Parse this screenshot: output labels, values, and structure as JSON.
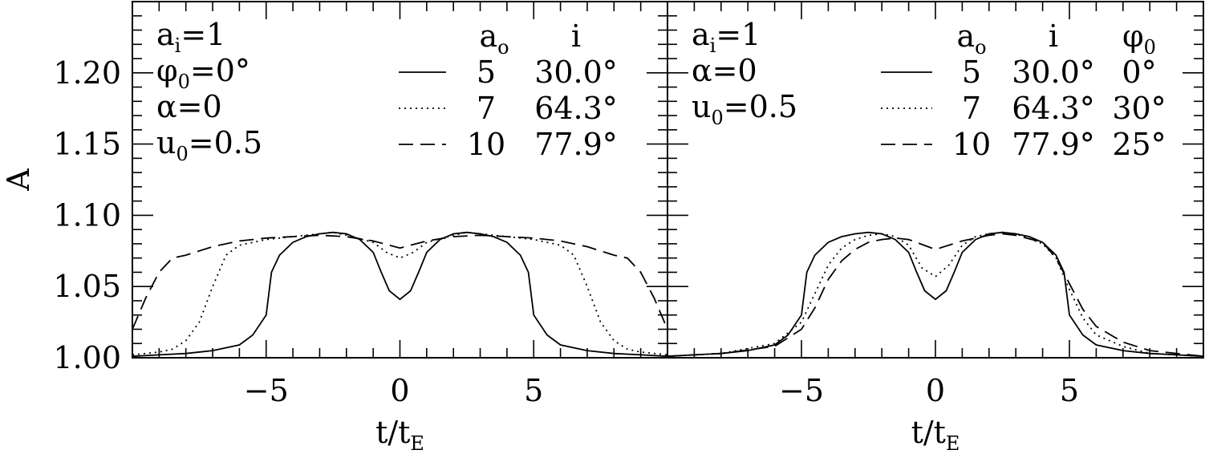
{
  "chart_data": [
    {
      "type": "line",
      "panel": "left",
      "xlabel": "t/t",
      "xlabel_sub": "E",
      "ylabel": "A",
      "xlim": [
        -10,
        10
      ],
      "ylim": [
        1.0,
        1.25
      ],
      "x_ticks": [
        -5,
        0,
        5
      ],
      "x_tick_labels": [
        "−5",
        "0",
        "5"
      ],
      "y_ticks": [
        1.0,
        1.05,
        1.1,
        1.15,
        1.2
      ],
      "y_tick_labels": [
        "1.00",
        "1.05",
        "1.10",
        "1.15",
        "1.20"
      ],
      "params": [
        {
          "sym": "a",
          "sub": "i",
          "value": "=1"
        },
        {
          "sym": "φ",
          "sub": "0",
          "value": "=0°"
        },
        {
          "sym": "α",
          "sub": "",
          "value": "=0"
        },
        {
          "sym": "u",
          "sub": "0",
          "value": "=0.5"
        }
      ],
      "legend_headers": [
        {
          "sym": "a",
          "sub": "o"
        },
        {
          "sym": "i",
          "sub": ""
        }
      ],
      "legend_rows": [
        {
          "style": "solid",
          "cols": [
            "5",
            "30.0°"
          ]
        },
        {
          "style": "dotted",
          "cols": [
            "7",
            "64.3°"
          ]
        },
        {
          "style": "dashed",
          "cols": [
            "10",
            "77.9°"
          ]
        }
      ],
      "series": [
        {
          "style": "solid",
          "x": [
            -10,
            -9,
            -8,
            -7,
            -6,
            -5.5,
            -5,
            -4.8,
            -4.5,
            -4,
            -3.5,
            -3,
            -2.5,
            -2,
            -1.5,
            -1,
            -0.7,
            -0.4,
            0,
            0.4,
            0.7,
            1,
            1.5,
            2,
            2.5,
            3,
            3.5,
            4,
            4.5,
            4.8,
            5,
            5.5,
            6,
            7,
            8,
            9,
            10
          ],
          "y": [
            1.001,
            1.002,
            1.003,
            1.005,
            1.009,
            1.016,
            1.03,
            1.06,
            1.072,
            1.081,
            1.085,
            1.087,
            1.088,
            1.087,
            1.083,
            1.074,
            1.06,
            1.047,
            1.041,
            1.047,
            1.06,
            1.074,
            1.083,
            1.087,
            1.088,
            1.087,
            1.085,
            1.081,
            1.072,
            1.06,
            1.03,
            1.016,
            1.009,
            1.005,
            1.003,
            1.002,
            1.001
          ]
        },
        {
          "style": "dotted",
          "x": [
            -10,
            -9,
            -8.5,
            -8,
            -7.5,
            -7,
            -6.5,
            -6,
            -5,
            -4,
            -3,
            -2.5,
            -2,
            -1,
            -0.5,
            0,
            0.5,
            1,
            2,
            2.5,
            3,
            4,
            5,
            6,
            6.5,
            7,
            7.5,
            8,
            8.5,
            9,
            10
          ],
          "y": [
            1.002,
            1.004,
            1.006,
            1.012,
            1.025,
            1.05,
            1.072,
            1.079,
            1.083,
            1.085,
            1.087,
            1.088,
            1.086,
            1.081,
            1.074,
            1.07,
            1.074,
            1.081,
            1.086,
            1.088,
            1.087,
            1.085,
            1.083,
            1.079,
            1.072,
            1.05,
            1.025,
            1.012,
            1.006,
            1.004,
            1.002
          ]
        },
        {
          "style": "dashed",
          "x": [
            -10,
            -9.5,
            -9,
            -8.5,
            -8,
            -7,
            -6,
            -5,
            -4,
            -3,
            -2,
            -1,
            0,
            1,
            2,
            3,
            4,
            5,
            6,
            7,
            8,
            8.5,
            9,
            9.5,
            10
          ],
          "y": [
            1.02,
            1.042,
            1.06,
            1.07,
            1.072,
            1.078,
            1.082,
            1.084,
            1.085,
            1.086,
            1.085,
            1.082,
            1.077,
            1.082,
            1.085,
            1.086,
            1.085,
            1.084,
            1.082,
            1.078,
            1.072,
            1.07,
            1.06,
            1.042,
            1.02
          ]
        }
      ]
    },
    {
      "type": "line",
      "panel": "right",
      "xlabel": "t/t",
      "xlabel_sub": "E",
      "ylabel": "",
      "xlim": [
        -10,
        10
      ],
      "ylim": [
        1.0,
        1.25
      ],
      "x_ticks": [
        -5,
        0,
        5
      ],
      "x_tick_labels": [
        "−5",
        "0",
        "5"
      ],
      "params": [
        {
          "sym": "a",
          "sub": "i",
          "value": "=1"
        },
        {
          "sym": "α",
          "sub": "",
          "value": "=0"
        },
        {
          "sym": "u",
          "sub": "0",
          "value": "=0.5"
        }
      ],
      "legend_headers": [
        {
          "sym": "a",
          "sub": "o"
        },
        {
          "sym": "i",
          "sub": ""
        },
        {
          "sym": "φ",
          "sub": "0"
        }
      ],
      "legend_rows": [
        {
          "style": "solid",
          "cols": [
            "5",
            "30.0°",
            "0°"
          ]
        },
        {
          "style": "dotted",
          "cols": [
            "7",
            "64.3°",
            "30°"
          ]
        },
        {
          "style": "dashed",
          "cols": [
            "10",
            "77.9°",
            "25°"
          ]
        }
      ],
      "series": [
        {
          "style": "solid",
          "x": [
            -10,
            -9,
            -8,
            -7,
            -6,
            -5.5,
            -5,
            -4.8,
            -4.5,
            -4,
            -3.5,
            -3,
            -2.5,
            -2,
            -1.5,
            -1,
            -0.7,
            -0.4,
            0,
            0.4,
            0.7,
            1,
            1.5,
            2,
            2.5,
            3,
            3.5,
            4,
            4.5,
            4.8,
            5,
            5.5,
            6,
            7,
            8,
            9,
            10
          ],
          "y": [
            1.001,
            1.002,
            1.003,
            1.005,
            1.009,
            1.016,
            1.03,
            1.06,
            1.072,
            1.081,
            1.085,
            1.087,
            1.088,
            1.087,
            1.083,
            1.074,
            1.06,
            1.047,
            1.041,
            1.047,
            1.06,
            1.074,
            1.083,
            1.087,
            1.088,
            1.087,
            1.085,
            1.081,
            1.072,
            1.06,
            1.03,
            1.016,
            1.009,
            1.005,
            1.003,
            1.002,
            1.001
          ]
        },
        {
          "style": "dotted",
          "x": [
            -10,
            -8,
            -6,
            -5,
            -4.5,
            -4,
            -3.5,
            -3,
            -2.5,
            -2,
            -1.5,
            -1,
            -0.5,
            0,
            0.5,
            1,
            1.5,
            2,
            2.5,
            3,
            4,
            4.5,
            5,
            5.5,
            6,
            7,
            8,
            10
          ],
          "y": [
            1.001,
            1.003,
            1.01,
            1.025,
            1.045,
            1.065,
            1.077,
            1.083,
            1.086,
            1.087,
            1.085,
            1.079,
            1.063,
            1.057,
            1.065,
            1.079,
            1.085,
            1.087,
            1.088,
            1.087,
            1.08,
            1.07,
            1.048,
            1.028,
            1.016,
            1.008,
            1.003,
            1.001
          ]
        },
        {
          "style": "dashed",
          "x": [
            -10,
            -8,
            -6,
            -5,
            -4.5,
            -4,
            -3.5,
            -3,
            -2.5,
            -2,
            -1.5,
            -1,
            0,
            1,
            2,
            2.5,
            3,
            4,
            4.5,
            5,
            5.5,
            6,
            7,
            8,
            10
          ],
          "y": [
            1.001,
            1.003,
            1.008,
            1.02,
            1.035,
            1.055,
            1.068,
            1.076,
            1.081,
            1.083,
            1.084,
            1.083,
            1.076,
            1.082,
            1.086,
            1.087,
            1.086,
            1.081,
            1.07,
            1.052,
            1.034,
            1.022,
            1.011,
            1.005,
            1.001
          ]
        }
      ]
    }
  ]
}
